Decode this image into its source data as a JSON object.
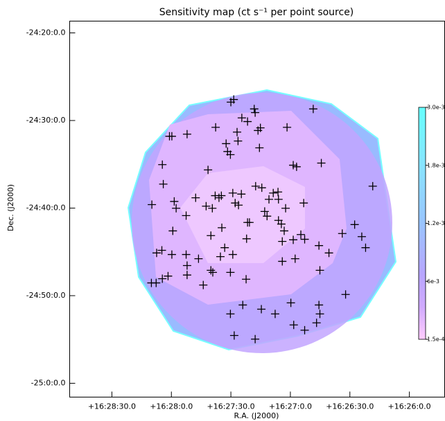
{
  "chart_data": {
    "type": "scatter",
    "title": "Sensitivity map (ct s⁻¹ per point source)",
    "x_label": "R.A. (J2000)",
    "y_label": "Dec. (J2000)",
    "color": "#000000",
    "xlim": [
      247.2137,
      246.4259
    ],
    "ylim": [
      -25.0263,
      -24.3109
    ],
    "xticks": [
      {
        "value": 247.125,
        "label": "+16:28:30.0"
      },
      {
        "value": 247.0,
        "label": "+16:28:0.0"
      },
      {
        "value": 246.875,
        "label": "+16:27:30.0"
      },
      {
        "value": 246.75,
        "label": "+16:27:0.0"
      },
      {
        "value": 246.625,
        "label": "+16:26:30.0"
      },
      {
        "value": 246.5,
        "label": "+16:26:0.0"
      }
    ],
    "yticks": [
      {
        "value": -24.3333,
        "label": "-24:20:0.0"
      },
      {
        "value": -24.5,
        "label": "-24:30:0.0"
      },
      {
        "value": -24.6667,
        "label": "-24:40:0.0"
      },
      {
        "value": -24.8333,
        "label": "-24:50:0.0"
      },
      {
        "value": -25.0,
        "label": "-25:0:0.0"
      }
    ],
    "colorbar_labels": [
      "3.0e-3",
      "1.8e-3",
      "1.2e-3",
      "6e-3",
      "1.5e-4"
    ],
    "x": [
      246.869,
      246.875,
      246.824,
      246.826,
      246.702,
      246.852,
      246.84,
      247.004,
      246.999,
      246.967,
      246.907,
      246.862,
      246.818,
      246.813,
      246.757,
      246.885,
      246.86,
      246.882,
      246.876,
      246.815,
      247.019,
      246.923,
      246.685,
      246.737,
      246.744,
      246.577,
      247.017,
      246.823,
      246.81,
      246.776,
      246.786,
      246.853,
      246.871,
      246.994,
      246.949,
      246.908,
      246.9,
      246.927,
      246.866,
      246.859,
      246.914,
      246.895,
      247.041,
      246.99,
      246.969,
      246.722,
      246.795,
      246.775,
      246.76,
      246.799,
      246.804,
      246.836,
      246.84,
      246.894,
      246.775,
      246.769,
      246.763,
      246.728,
      246.72,
      246.641,
      246.615,
      246.6,
      246.592,
      246.997,
      246.917,
      246.842,
      246.888,
      247.02,
      246.999,
      246.969,
      246.943,
      246.897,
      246.69,
      246.669,
      246.767,
      246.744,
      246.74,
      246.767,
      246.688,
      246.871,
      246.967,
      246.967,
      247.031,
      246.917,
      246.913,
      246.876,
      246.843,
      247.042,
      247.032,
      247.019,
      247.007,
      246.933,
      246.634,
      246.85,
      246.811,
      246.749,
      246.69,
      246.782,
      246.695,
      246.688,
      246.876,
      246.743,
      246.72,
      246.868,
      246.824
    ],
    "values": [
      -24.46,
      -24.465,
      -24.485,
      -24.478,
      -24.478,
      -24.495,
      -24.502,
      -24.53,
      -24.53,
      -24.526,
      -24.513,
      -24.522,
      -24.519,
      -24.514,
      -24.513,
      -24.544,
      -24.539,
      -24.559,
      -24.565,
      -24.552,
      -24.584,
      -24.594,
      -24.581,
      -24.588,
      -24.585,
      -24.625,
      -24.621,
      -24.625,
      -24.628,
      -24.636,
      -24.638,
      -24.64,
      -24.638,
      -24.654,
      -24.647,
      -24.643,
      -24.647,
      -24.663,
      -24.657,
      -24.661,
      -24.667,
      -24.643,
      -24.66,
      -24.667,
      -24.681,
      -24.657,
      -24.65,
      -24.65,
      -24.667,
      -24.682,
      -24.673,
      -24.694,
      -24.694,
      -24.704,
      -24.69,
      -24.697,
      -24.71,
      -24.717,
      -24.726,
      -24.715,
      -24.698,
      -24.721,
      -24.742,
      -24.71,
      -24.719,
      -24.725,
      -24.742,
      -24.747,
      -24.755,
      -24.755,
      -24.763,
      -24.759,
      -24.738,
      -24.752,
      -24.73,
      -24.727,
      -24.763,
      -24.768,
      -24.785,
      -24.755,
      -24.776,
      -24.794,
      -24.752,
      -24.785,
      -24.789,
      -24.789,
      -24.802,
      -24.809,
      -24.809,
      -24.801,
      -24.796,
      -24.813,
      -24.831,
      -24.851,
      -24.859,
      -24.847,
      -24.851,
      -24.868,
      -24.885,
      -24.868,
      -24.868,
      -24.889,
      -24.899,
      -24.909,
      -24.916
    ]
  }
}
